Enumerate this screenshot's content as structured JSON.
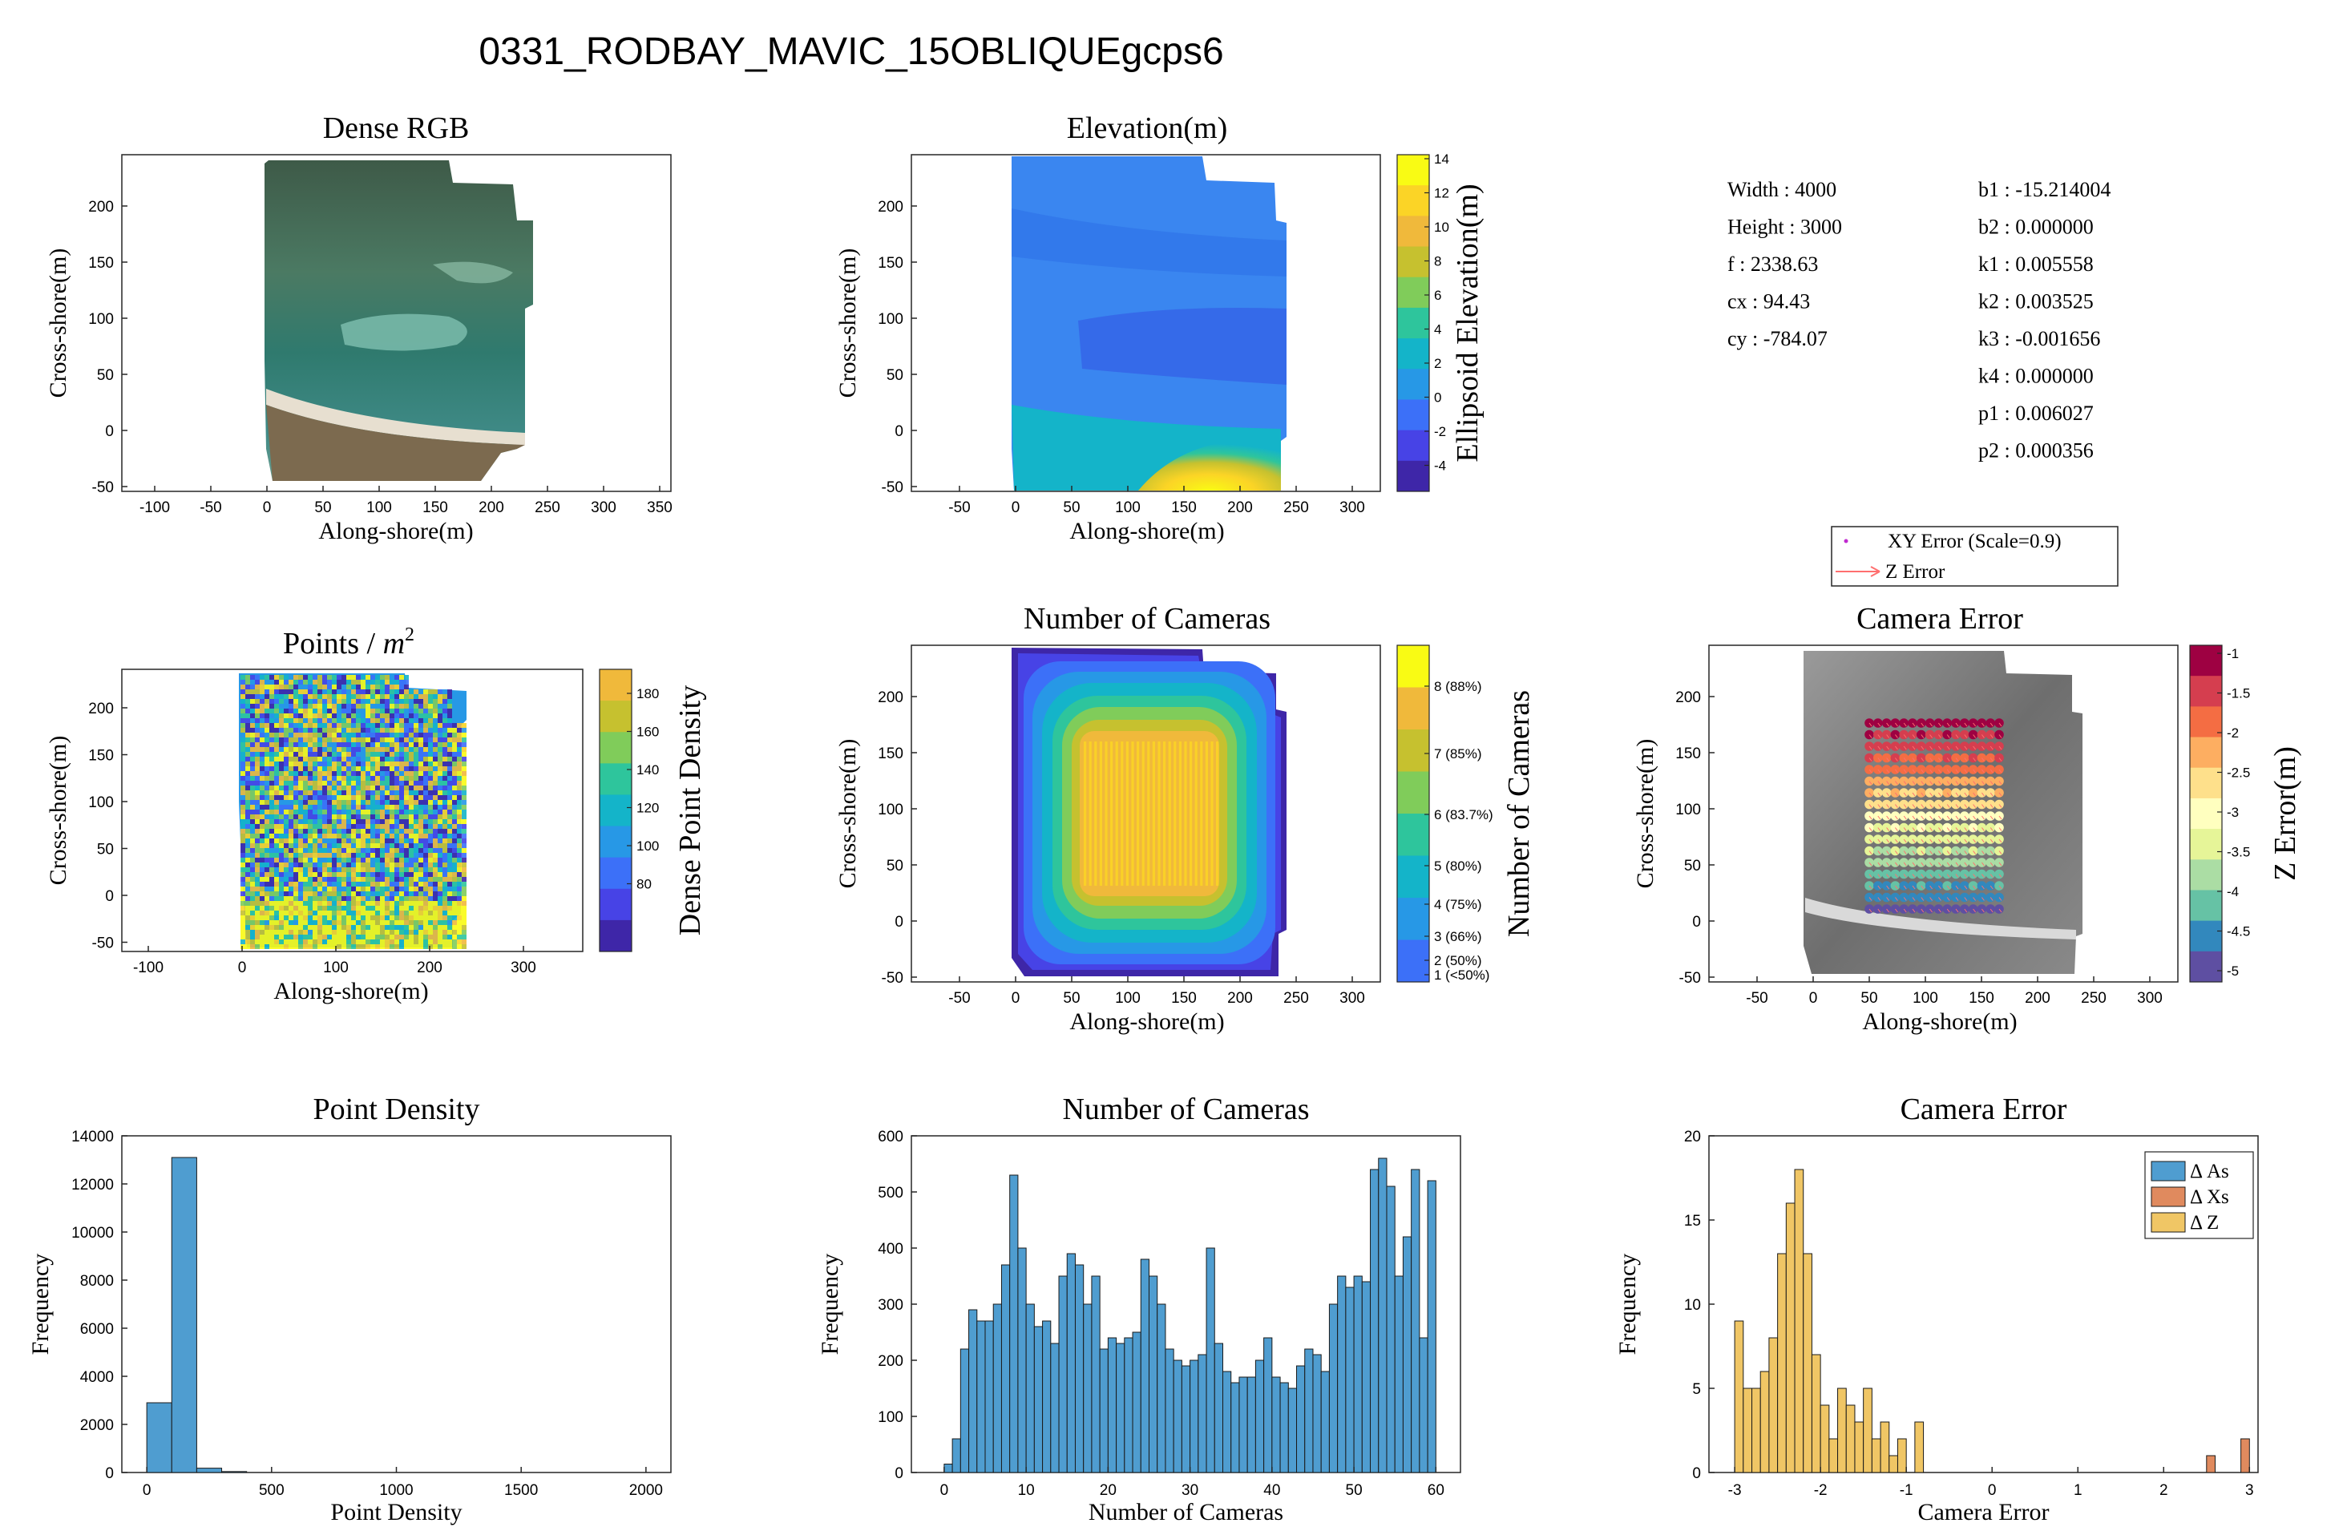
{
  "suptitle": "0331_RODBAY_MAVIC_15OBLIQUEgcps6",
  "colors": {
    "hist_blue": "#4f9dd0",
    "hist_orange": "#e08a5e",
    "hist_yellow": "#f0c665",
    "map_blue": "#3a86f0",
    "parula": [
      "#3e26a8",
      "#4743e6",
      "#3c70f8",
      "#2798e6",
      "#14b4c9",
      "#2ec59c",
      "#80cc5a",
      "#c6c12f",
      "#f0b93b",
      "#fbd426",
      "#f9fb14"
    ],
    "spectral": [
      "#5e4fa2",
      "#3288bd",
      "#66c2a5",
      "#abdda4",
      "#e6f598",
      "#ffffbf",
      "#fee08b",
      "#fdae61",
      "#f46d43",
      "#d53e4f",
      "#9e0142"
    ]
  },
  "panels": {
    "rgb": {
      "title": "Dense RGB",
      "xlabel": "Along-shore(m)",
      "ylabel": "Cross-shore(m)",
      "xticks": [
        "-100",
        "-50",
        "0",
        "50",
        "100",
        "150",
        "200",
        "250",
        "300",
        "350"
      ],
      "yticks": [
        "200",
        "150",
        "100",
        "50",
        "0",
        "-50"
      ]
    },
    "elev": {
      "title": "Elevation(m)",
      "xlabel": "Along-shore(m)",
      "ylabel": "Cross-shore(m)",
      "xticks": [
        "-50",
        "0",
        "50",
        "100",
        "150",
        "200",
        "250",
        "300"
      ],
      "yticks": [
        "200",
        "150",
        "100",
        "50",
        "0",
        "-50"
      ],
      "cbar_label": "Ellipsoid Elevation(m)",
      "cbar_ticks": [
        "14",
        "12",
        "10",
        "8",
        "6",
        "4",
        "2",
        "0",
        "-2",
        "-4"
      ]
    },
    "params": {
      "left": [
        "Width :  4000",
        "Height :  3000",
        "f :  2338.63",
        "cx :  94.43",
        "cy :  -784.07"
      ],
      "right": [
        "b1 :  -15.214004",
        "b2 :  0.000000",
        "k1 :  0.005558",
        "k2 :  0.003525",
        "k3 :  -0.001656",
        "k4 :  0.000000",
        "p1 :  0.006027",
        "p2 :  0.000356"
      ]
    },
    "legend_err": {
      "xy": "XY Error (Scale=0.9)",
      "z": "Z Error"
    },
    "pts": {
      "title": "Points /",
      "title_math": "m",
      "title_sup": "2",
      "xlabel": "Along-shore(m)",
      "ylabel": "Cross-shore(m)",
      "xticks": [
        "-100",
        "0",
        "100",
        "200",
        "300"
      ],
      "yticks": [
        "200",
        "150",
        "100",
        "50",
        "0",
        "-50"
      ],
      "cbar_label": "Dense Point Density",
      "cbar_ticks": [
        "180",
        "160",
        "140",
        "120",
        "100",
        "80"
      ]
    },
    "ncam": {
      "title": "Number of Cameras",
      "xlabel": "Along-shore(m)",
      "ylabel": "Cross-shore(m)",
      "xticks": [
        "-50",
        "0",
        "50",
        "100",
        "150",
        "200",
        "250",
        "300"
      ],
      "yticks": [
        "200",
        "150",
        "100",
        "50",
        "0",
        "-50"
      ],
      "cbar_label": "Number of Cameras",
      "cbar_ticks": [
        "8 (88%)",
        "7 (85%)",
        "6 (83.7%)",
        "5 (80%)",
        "4 (75%)",
        "3 (66%)",
        "2 (50%)",
        "1 (<50%)"
      ]
    },
    "camerr": {
      "title": "Camera Error",
      "xlabel": "Along-shore(m)",
      "ylabel": "Cross-shore(m)",
      "xticks": [
        "-50",
        "0",
        "50",
        "100",
        "150",
        "200",
        "250",
        "300"
      ],
      "yticks": [
        "200",
        "150",
        "100",
        "50",
        "0",
        "-50"
      ],
      "cbar_label": "Z Error(m)",
      "cbar_ticks": [
        "-1",
        "-1.5",
        "-2",
        "-2.5",
        "-3",
        "-3.5",
        "-4",
        "-4.5",
        "-5"
      ]
    }
  },
  "chart_data": [
    {
      "type": "bar",
      "title": "Point Density",
      "xlabel": "Point Density",
      "ylabel": "Frequency",
      "bin_edges": [
        0,
        100,
        200,
        300,
        400
      ],
      "values": [
        2900,
        13100,
        180,
        40
      ],
      "xlim": [
        -100,
        2100
      ],
      "ylim": [
        0,
        14000
      ],
      "xticks": [
        "0",
        "500",
        "1000",
        "1500",
        "2000"
      ],
      "yticks": [
        "0",
        "2000",
        "4000",
        "6000",
        "8000",
        "10000",
        "12000",
        "14000"
      ],
      "grid": false
    },
    {
      "type": "bar",
      "title": "Number of Cameras",
      "xlabel": "Number of Cameras",
      "ylabel": "Frequency",
      "bin_start": 0,
      "bin_width": 1,
      "values": [
        15,
        60,
        220,
        290,
        270,
        270,
        300,
        370,
        530,
        400,
        300,
        260,
        270,
        230,
        350,
        390,
        370,
        300,
        350,
        220,
        240,
        230,
        240,
        250,
        380,
        350,
        300,
        220,
        200,
        190,
        200,
        210,
        400,
        230,
        180,
        160,
        170,
        170,
        200,
        240,
        170,
        160,
        150,
        190,
        220,
        210,
        180,
        300,
        350,
        330,
        350,
        340,
        540,
        560,
        510,
        350,
        420,
        540,
        240,
        520
      ],
      "xlim": [
        -4,
        63
      ],
      "ylim": [
        0,
        600
      ],
      "xticks": [
        "0",
        "10",
        "20",
        "30",
        "40",
        "50",
        "60"
      ],
      "yticks": [
        "0",
        "100",
        "200",
        "300",
        "400",
        "500",
        "600"
      ],
      "grid": false
    },
    {
      "type": "bar",
      "title": "Camera Error",
      "xlabel": "Camera Error",
      "ylabel": "Frequency",
      "legend": "top-right",
      "bin_start": -3.0,
      "bin_width": 0.1,
      "series": [
        {
          "name": "Δ As",
          "values": []
        },
        {
          "name": "Δ Xs",
          "bins": [
            2.5,
            2.9
          ],
          "values": [
            1,
            2
          ]
        },
        {
          "name": "Δ Z",
          "values": [
            9,
            5,
            5,
            6,
            8,
            13,
            16,
            18,
            13,
            7,
            4,
            2,
            5,
            4,
            3,
            5,
            2,
            3,
            1,
            2,
            0,
            3
          ]
        }
      ],
      "xlim": [
        -3.3,
        3.1
      ],
      "ylim": [
        0,
        20
      ],
      "xticks": [
        "-3",
        "-2",
        "-1",
        "0",
        "1",
        "2",
        "3"
      ],
      "yticks": [
        "0",
        "5",
        "10",
        "15",
        "20"
      ],
      "grid": false
    }
  ]
}
